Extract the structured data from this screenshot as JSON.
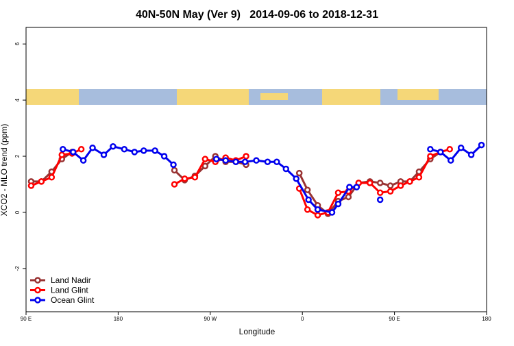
{
  "chart_data": {
    "type": "line",
    "title": "40N-50N May (Ver 9)   2014-09-06 to 2018-12-31",
    "x_label": "Longitude",
    "y_label": "XCO2 - MLO trend (ppm)",
    "xlim": [
      -270,
      180
    ],
    "xticks": [
      {
        "value": -270,
        "label": "90 E"
      },
      {
        "value": -180,
        "label": "180"
      },
      {
        "value": -90,
        "label": "90 W"
      },
      0,
      {
        "value": 90,
        "label": "90 E"
      },
      180
    ],
    "ylim": [
      -3.54,
      6.59
    ],
    "yticks": [
      -2,
      0,
      2,
      4,
      6
    ],
    "legend_position": "bottom-left",
    "series": [
      {
        "name": "Land Nadir",
        "color": "#993333",
        "x": [
          -265,
          -255,
          -245,
          -235,
          -225,
          -170,
          -125,
          -115,
          -105,
          -95,
          -85,
          -75,
          -65,
          -55,
          -30,
          -3,
          5,
          15,
          25,
          35,
          45,
          55,
          66,
          76,
          86,
          96,
          105,
          114,
          125,
          135
        ],
        "values": [
          1.1,
          1.1,
          1.45,
          1.9,
          2.15,
          null,
          1.5,
          1.15,
          1.3,
          1.65,
          2.0,
          1.8,
          1.8,
          1.7,
          null,
          1.4,
          0.8,
          0.25,
          -0.05,
          0.4,
          0.55,
          1.05,
          1.1,
          1.05,
          0.95,
          1.1,
          1.1,
          1.45,
          1.9,
          2.15
        ]
      },
      {
        "name": "Land Glint",
        "color": "#ff0000",
        "x": [
          -265,
          -255,
          -245,
          -235,
          -225,
          -216,
          -170,
          -125,
          -115,
          -105,
          -95,
          -85,
          -75,
          -65,
          -55,
          -30,
          -3,
          5,
          15,
          25,
          35,
          45,
          55,
          66,
          76,
          86,
          96,
          105,
          114,
          125,
          135,
          144
        ],
        "values": [
          0.95,
          1.1,
          1.25,
          2.05,
          2.1,
          2.25,
          null,
          1.0,
          1.2,
          1.25,
          1.9,
          1.8,
          1.95,
          1.85,
          2.0,
          null,
          0.85,
          0.1,
          -0.1,
          0.0,
          0.7,
          0.75,
          1.05,
          1.05,
          0.7,
          0.75,
          0.95,
          1.1,
          1.25,
          2.0,
          2.15,
          2.25
        ]
      },
      {
        "name": "Ocean Glint",
        "color": "#0000ee",
        "x": [
          -234,
          -224,
          -214,
          -205,
          -194,
          -185,
          -174,
          -164,
          -155,
          -144,
          -135,
          -126,
          -105,
          -84,
          -75,
          -65,
          -56,
          -45,
          -34,
          -25,
          -16,
          -6,
          6,
          15,
          29,
          35,
          46,
          53,
          65,
          76,
          100,
          125,
          135,
          145,
          155,
          165,
          175
        ],
        "values": [
          2.25,
          2.15,
          1.85,
          2.3,
          2.05,
          2.35,
          2.25,
          2.15,
          2.2,
          2.2,
          2.0,
          1.7,
          null,
          1.9,
          1.85,
          1.8,
          1.8,
          1.85,
          1.8,
          1.8,
          1.55,
          1.2,
          0.45,
          0.1,
          0.0,
          0.3,
          0.9,
          0.9,
          null,
          0.45,
          null,
          2.25,
          2.15,
          1.85,
          2.3,
          2.05,
          2.4
        ]
      }
    ]
  }
}
